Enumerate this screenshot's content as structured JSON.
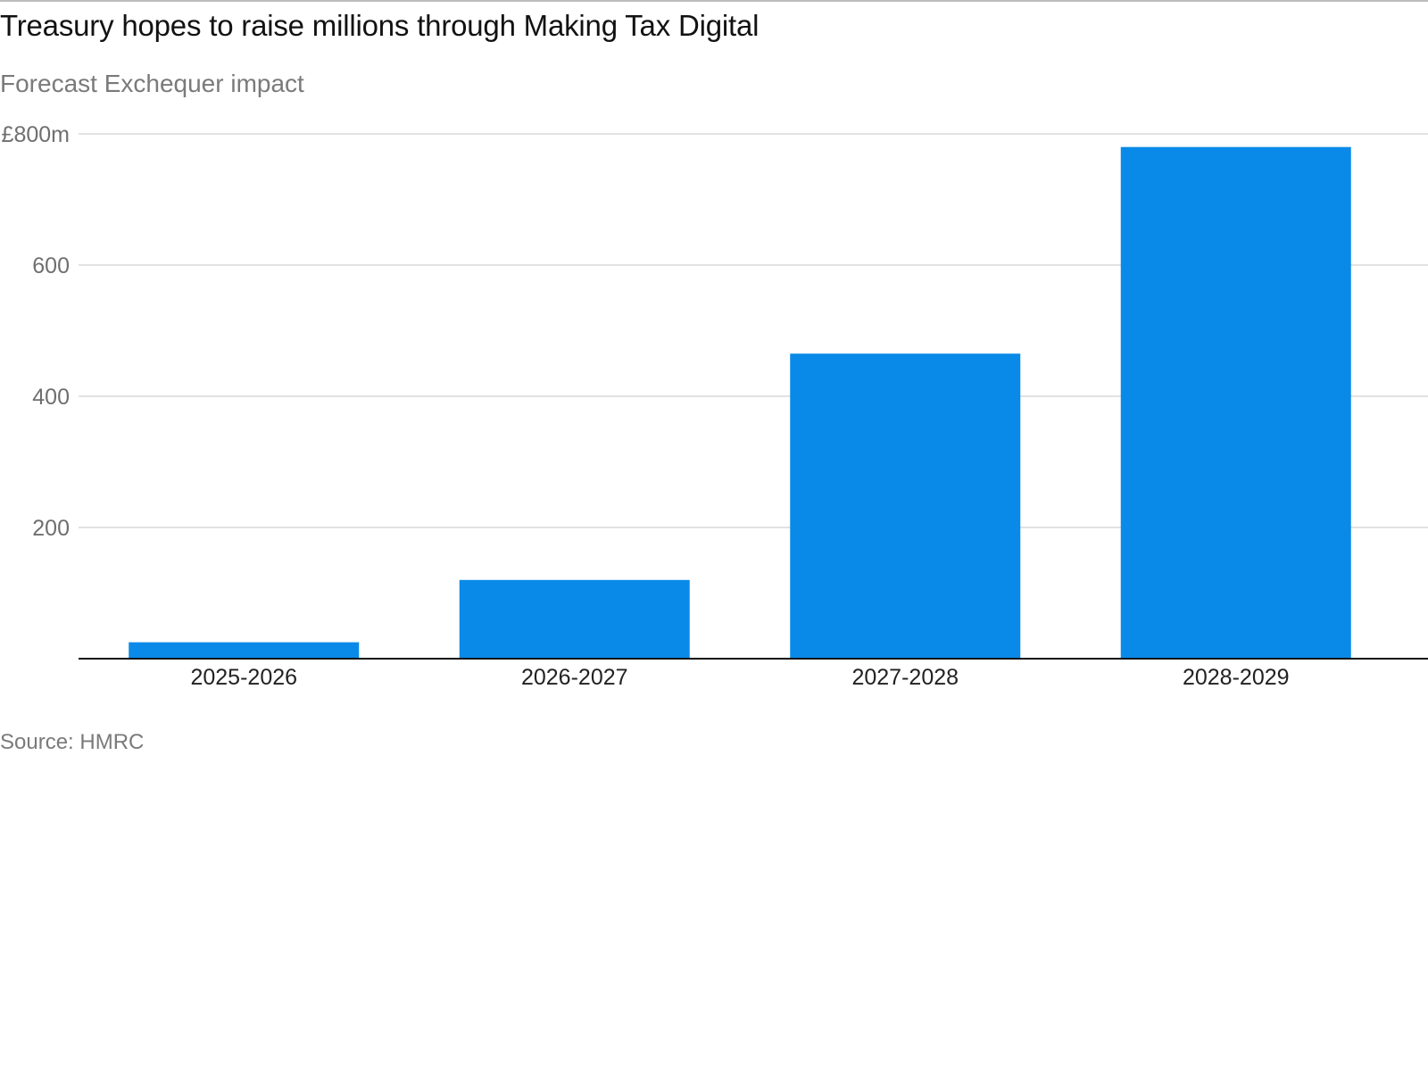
{
  "header": {
    "title": "Treasury hopes to raise millions through Making Tax Digital",
    "subtitle": "Forecast Exchequer impact"
  },
  "footer": {
    "source": "Source: HMRC"
  },
  "colors": {
    "bar": "#0a8ae8",
    "grid": "#d9d9d9",
    "axis": "#111111"
  },
  "chart_data": {
    "type": "bar",
    "categories": [
      "2025-2026",
      "2026-2027",
      "2027-2028",
      "2028-2029"
    ],
    "values": [
      25,
      120,
      465,
      780
    ],
    "ylim": [
      0,
      800
    ],
    "yticks": [
      200,
      400,
      600,
      800
    ],
    "ytick_labels": [
      "200",
      "400",
      "600",
      "£800m"
    ],
    "grid": true,
    "legend": "none"
  }
}
